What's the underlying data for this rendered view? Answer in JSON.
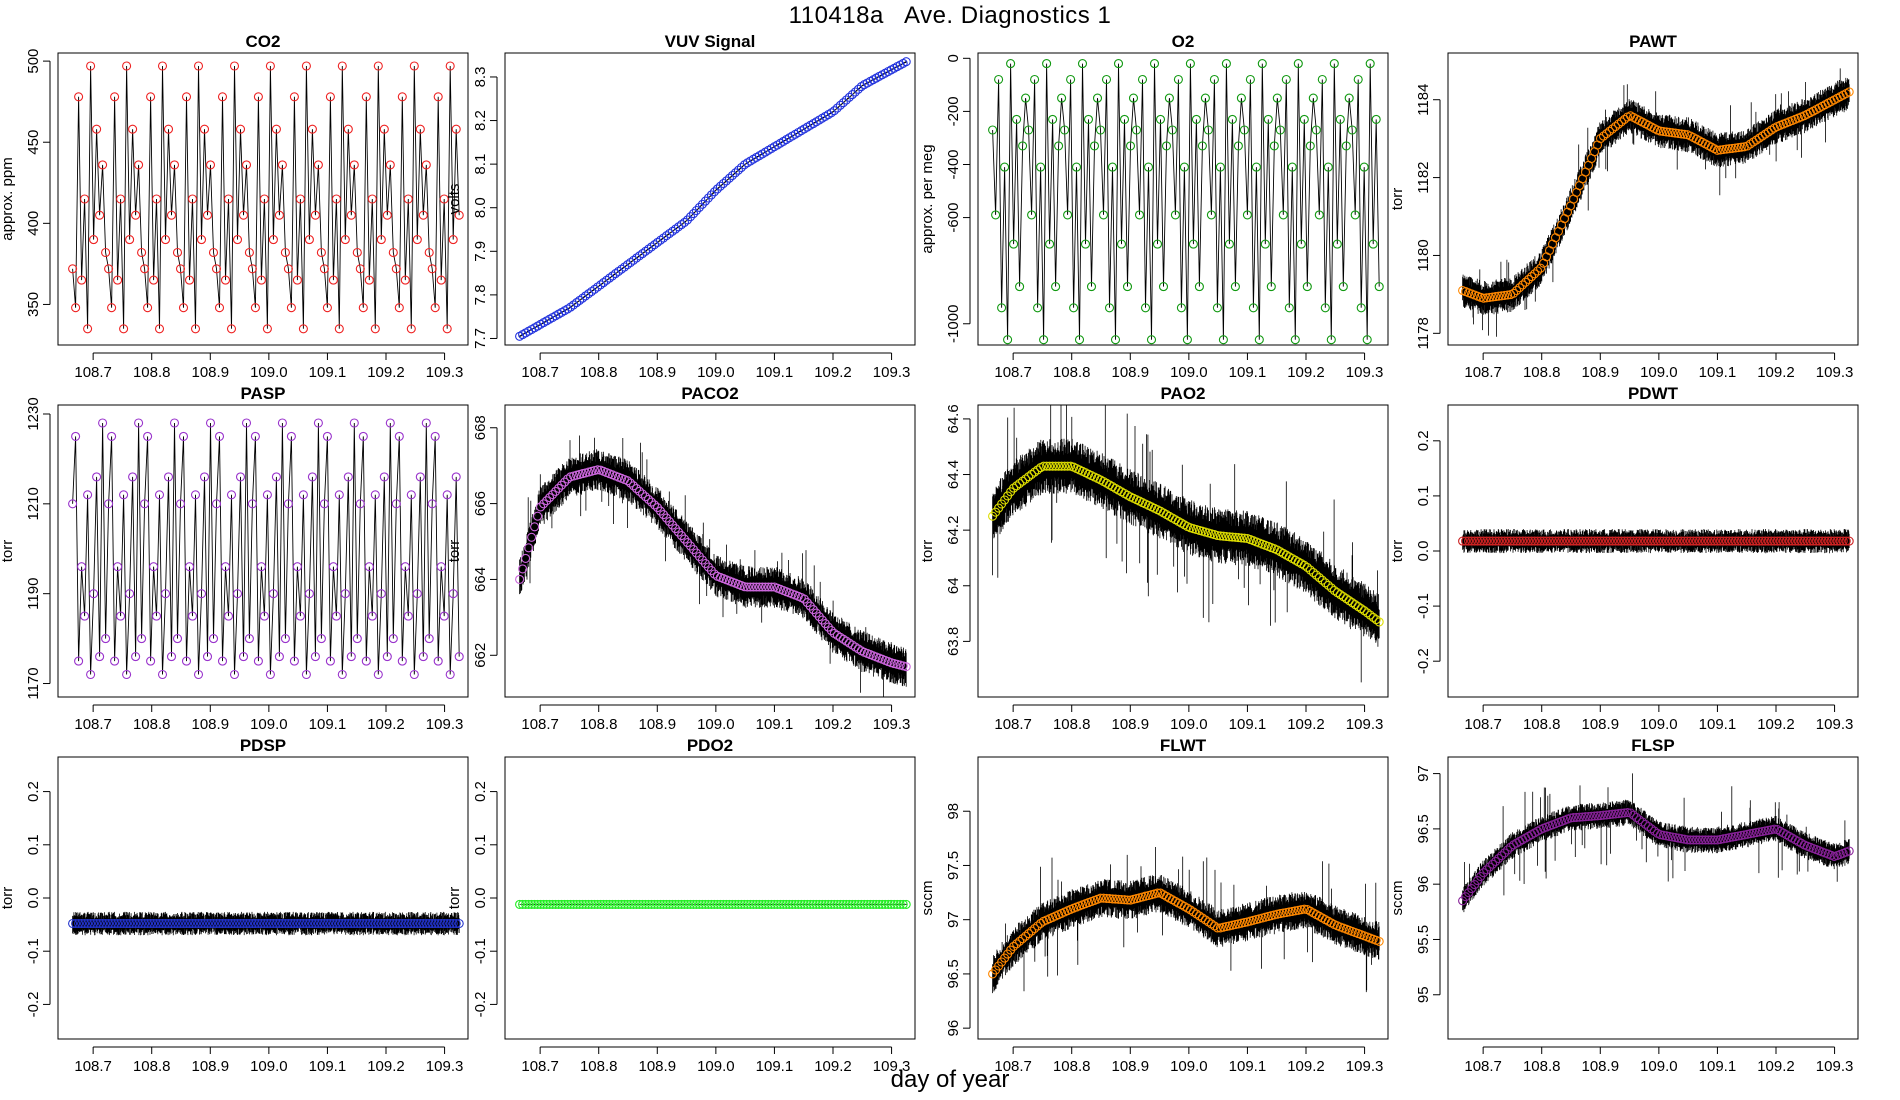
{
  "figure": {
    "title": "110418a   Ave. Diagnostics 1",
    "xlabel": "day of year"
  },
  "chart_data": [
    {
      "type": "line",
      "title": "CO2",
      "ylabel": "approx. ppm",
      "color": "#ee2222",
      "xlim": [
        108.64,
        109.34
      ],
      "ylim": [
        325,
        505
      ],
      "yticks": [
        350,
        400,
        450,
        500
      ],
      "xticks": [
        "108.7",
        "108.8",
        "108.9",
        "109.0",
        "109.1",
        "109.2",
        "109.3"
      ],
      "x_start": 108.665,
      "x_end": 109.325,
      "n_points": 130,
      "pattern": "cycle",
      "levels": [
        372,
        348,
        478,
        365,
        415,
        335,
        497,
        390,
        458,
        405,
        436,
        382
      ],
      "noise": 0,
      "spike": 0
    },
    {
      "type": "line",
      "title": "VUV Signal",
      "ylabel": "volts",
      "color": "#2233dd",
      "xlim": [
        108.64,
        109.34
      ],
      "ylim": [
        7.685,
        8.355
      ],
      "yticks": [
        7.7,
        7.8,
        7.9,
        8.0,
        8.1,
        8.2,
        8.3
      ],
      "xticks": [
        "108.7",
        "108.8",
        "108.9",
        "109.0",
        "109.1",
        "109.2",
        "109.3"
      ],
      "x_start": 108.665,
      "x_end": 109.325,
      "n_points": 130,
      "pattern": "smooth",
      "keys": [
        [
          108.665,
          7.705
        ],
        [
          108.75,
          7.77
        ],
        [
          108.85,
          7.87
        ],
        [
          108.95,
          7.97
        ],
        [
          109.0,
          8.04
        ],
        [
          109.05,
          8.1
        ],
        [
          109.1,
          8.14
        ],
        [
          109.15,
          8.18
        ],
        [
          109.2,
          8.22
        ],
        [
          109.25,
          8.28
        ],
        [
          109.325,
          8.335
        ]
      ],
      "noise": 0.002,
      "spike": 0
    },
    {
      "type": "line",
      "title": "O2",
      "ylabel": "approx. per meg",
      "color": "#119911",
      "xlim": [
        108.64,
        109.34
      ],
      "ylim": [
        -1080,
        20
      ],
      "yticks": [
        -1000,
        -600,
        -400,
        -200,
        0
      ],
      "xticks": [
        "108.7",
        "108.8",
        "108.9",
        "109.0",
        "109.1",
        "109.2",
        "109.3"
      ],
      "x_start": 108.665,
      "x_end": 109.325,
      "n_points": 130,
      "pattern": "cycle",
      "levels": [
        -270,
        -590,
        -80,
        -940,
        -410,
        -1060,
        -20,
        -700,
        -230,
        -860,
        -330,
        -150
      ],
      "noise": 0,
      "spike": 0
    },
    {
      "type": "line",
      "title": "PAWT",
      "ylabel": "torr",
      "color": "#ff8800",
      "xlim": [
        108.64,
        109.34
      ],
      "ylim": [
        1177.7,
        1185.2
      ],
      "yticks": [
        1178,
        1180,
        1182,
        1184
      ],
      "xticks": [
        "108.7",
        "108.8",
        "108.9",
        "109.0",
        "109.1",
        "109.2",
        "109.3"
      ],
      "x_start": 108.665,
      "x_end": 109.325,
      "n_points": 130,
      "pattern": "smooth",
      "keys": [
        [
          108.665,
          1179.1
        ],
        [
          108.7,
          1178.9
        ],
        [
          108.75,
          1179.0
        ],
        [
          108.8,
          1179.7
        ],
        [
          108.85,
          1181.3
        ],
        [
          108.9,
          1183.0
        ],
        [
          108.95,
          1183.6
        ],
        [
          109.0,
          1183.2
        ],
        [
          109.05,
          1183.1
        ],
        [
          109.1,
          1182.7
        ],
        [
          109.15,
          1182.8
        ],
        [
          109.2,
          1183.3
        ],
        [
          109.25,
          1183.6
        ],
        [
          109.3,
          1184.0
        ],
        [
          109.325,
          1184.2
        ]
      ],
      "noise": 0.45,
      "spike": 0.25
    },
    {
      "type": "line",
      "title": "PASP",
      "ylabel": "torr",
      "color": "#9933cc",
      "xlim": [
        108.64,
        109.34
      ],
      "ylim": [
        1167,
        1232
      ],
      "yticks": [
        1170,
        1190,
        1210,
        1230
      ],
      "xticks": [
        "108.7",
        "108.8",
        "108.9",
        "109.0",
        "109.1",
        "109.2",
        "109.3"
      ],
      "x_start": 108.665,
      "x_end": 109.325,
      "n_points": 130,
      "pattern": "cycle",
      "levels": [
        1210,
        1225,
        1175,
        1196,
        1185,
        1212,
        1172,
        1190,
        1216,
        1176,
        1228,
        1180
      ],
      "noise": 0,
      "spike": 0
    },
    {
      "type": "line",
      "title": "PACO2",
      "ylabel": "torr",
      "color": "#cc66dd",
      "xlim": [
        108.64,
        109.34
      ],
      "ylim": [
        660.9,
        668.6
      ],
      "yticks": [
        662,
        664,
        666,
        668
      ],
      "xticks": [
        "108.7",
        "108.8",
        "108.9",
        "109.0",
        "109.1",
        "109.2",
        "109.3"
      ],
      "x_start": 108.665,
      "x_end": 109.325,
      "n_points": 130,
      "pattern": "smooth",
      "keys": [
        [
          108.665,
          664.0
        ],
        [
          108.7,
          665.9
        ],
        [
          108.75,
          666.7
        ],
        [
          108.8,
          666.9
        ],
        [
          108.85,
          666.6
        ],
        [
          108.9,
          665.9
        ],
        [
          108.95,
          665.0
        ],
        [
          109.0,
          664.1
        ],
        [
          109.05,
          663.8
        ],
        [
          109.1,
          663.8
        ],
        [
          109.15,
          663.5
        ],
        [
          109.2,
          662.6
        ],
        [
          109.25,
          662.1
        ],
        [
          109.3,
          661.8
        ],
        [
          109.325,
          661.7
        ]
      ],
      "noise": 0.55,
      "spike": 0.3
    },
    {
      "type": "line",
      "title": "PAO2",
      "ylabel": "torr",
      "color": "#dddd00",
      "xlim": [
        108.64,
        109.34
      ],
      "ylim": [
        63.6,
        64.65
      ],
      "yticks": [
        63.8,
        64.0,
        64.2,
        64.4,
        64.6
      ],
      "xticks": [
        "108.7",
        "108.8",
        "108.9",
        "109.0",
        "109.1",
        "109.2",
        "109.3"
      ],
      "x_start": 108.665,
      "x_end": 109.325,
      "n_points": 130,
      "pattern": "smooth",
      "keys": [
        [
          108.665,
          64.25
        ],
        [
          108.7,
          64.35
        ],
        [
          108.75,
          64.43
        ],
        [
          108.8,
          64.43
        ],
        [
          108.85,
          64.38
        ],
        [
          108.9,
          64.32
        ],
        [
          108.95,
          64.27
        ],
        [
          109.0,
          64.21
        ],
        [
          109.05,
          64.18
        ],
        [
          109.1,
          64.17
        ],
        [
          109.15,
          64.13
        ],
        [
          109.2,
          64.07
        ],
        [
          109.25,
          63.98
        ],
        [
          109.3,
          63.91
        ],
        [
          109.325,
          63.87
        ]
      ],
      "noise": 0.1,
      "spike": 0.08
    },
    {
      "type": "line",
      "title": "PDWT",
      "ylabel": "torr",
      "color": "#cc2222",
      "xlim": [
        108.64,
        109.34
      ],
      "ylim": [
        -0.265,
        0.265
      ],
      "yticks": [
        -0.2,
        -0.1,
        0.0,
        0.1,
        0.2
      ],
      "xticks": [
        "108.7",
        "108.8",
        "108.9",
        "109.0",
        "109.1",
        "109.2",
        "109.3"
      ],
      "x_start": 108.665,
      "x_end": 109.325,
      "n_points": 130,
      "pattern": "flat",
      "mean": 0.018,
      "noise": 0.022,
      "spike": 0
    },
    {
      "type": "line",
      "title": "PDSP",
      "ylabel": "torr",
      "color": "#2233cc",
      "xlim": [
        108.64,
        109.34
      ],
      "ylim": [
        -0.265,
        0.265
      ],
      "yticks": [
        -0.2,
        -0.1,
        0.0,
        0.1,
        0.2
      ],
      "xticks": [
        "108.7",
        "108.8",
        "108.9",
        "109.0",
        "109.1",
        "109.2",
        "109.3"
      ],
      "x_start": 108.665,
      "x_end": 109.325,
      "n_points": 130,
      "pattern": "flat",
      "mean": -0.048,
      "noise": 0.022,
      "spike": 0
    },
    {
      "type": "line",
      "title": "PDO2",
      "ylabel": "torr",
      "color": "#22ee22",
      "xlim": [
        108.64,
        109.34
      ],
      "ylim": [
        -0.265,
        0.265
      ],
      "yticks": [
        -0.2,
        -0.1,
        0.0,
        0.1,
        0.2
      ],
      "xticks": [
        "108.7",
        "108.8",
        "108.9",
        "109.0",
        "109.1",
        "109.2",
        "109.3"
      ],
      "x_start": 108.665,
      "x_end": 109.325,
      "n_points": 130,
      "pattern": "flat",
      "mean": -0.012,
      "noise": 0.001,
      "spike": 0
    },
    {
      "type": "line",
      "title": "FLWT",
      "ylabel": "sccm",
      "color": "#ff8800",
      "xlim": [
        108.64,
        109.34
      ],
      "ylim": [
        95.9,
        98.5
      ],
      "yticks": [
        96.0,
        96.5,
        97.0,
        97.5,
        98.0
      ],
      "xticks": [
        "108.7",
        "108.8",
        "108.9",
        "109.0",
        "109.1",
        "109.2",
        "109.3"
      ],
      "x_start": 108.665,
      "x_end": 109.325,
      "n_points": 130,
      "pattern": "smooth",
      "keys": [
        [
          108.665,
          96.5
        ],
        [
          108.7,
          96.75
        ],
        [
          108.75,
          96.98
        ],
        [
          108.8,
          97.1
        ],
        [
          108.85,
          97.2
        ],
        [
          108.9,
          97.18
        ],
        [
          108.95,
          97.25
        ],
        [
          109.0,
          97.1
        ],
        [
          109.05,
          96.92
        ],
        [
          109.1,
          96.98
        ],
        [
          109.15,
          97.05
        ],
        [
          109.2,
          97.1
        ],
        [
          109.25,
          96.95
        ],
        [
          109.3,
          96.85
        ],
        [
          109.325,
          96.8
        ]
      ],
      "noise": 0.18,
      "spike": 0.15
    },
    {
      "type": "line",
      "title": "FLSP",
      "ylabel": "sccm",
      "color": "#882299",
      "xlim": [
        108.64,
        109.34
      ],
      "ylim": [
        94.6,
        97.15
      ],
      "yticks": [
        95.0,
        95.5,
        96.0,
        96.5,
        97.0
      ],
      "xticks": [
        "108.7",
        "108.8",
        "108.9",
        "109.0",
        "109.1",
        "109.2",
        "109.3"
      ],
      "x_start": 108.665,
      "x_end": 109.325,
      "n_points": 130,
      "pattern": "smooth",
      "keys": [
        [
          108.665,
          95.85
        ],
        [
          108.7,
          96.1
        ],
        [
          108.75,
          96.35
        ],
        [
          108.8,
          96.5
        ],
        [
          108.85,
          96.6
        ],
        [
          108.9,
          96.62
        ],
        [
          108.95,
          96.65
        ],
        [
          109.0,
          96.45
        ],
        [
          109.05,
          96.4
        ],
        [
          109.1,
          96.4
        ],
        [
          109.15,
          96.45
        ],
        [
          109.2,
          96.5
        ],
        [
          109.25,
          96.35
        ],
        [
          109.3,
          96.25
        ],
        [
          109.325,
          96.3
        ]
      ],
      "noise": 0.12,
      "spike": 0.12
    }
  ]
}
